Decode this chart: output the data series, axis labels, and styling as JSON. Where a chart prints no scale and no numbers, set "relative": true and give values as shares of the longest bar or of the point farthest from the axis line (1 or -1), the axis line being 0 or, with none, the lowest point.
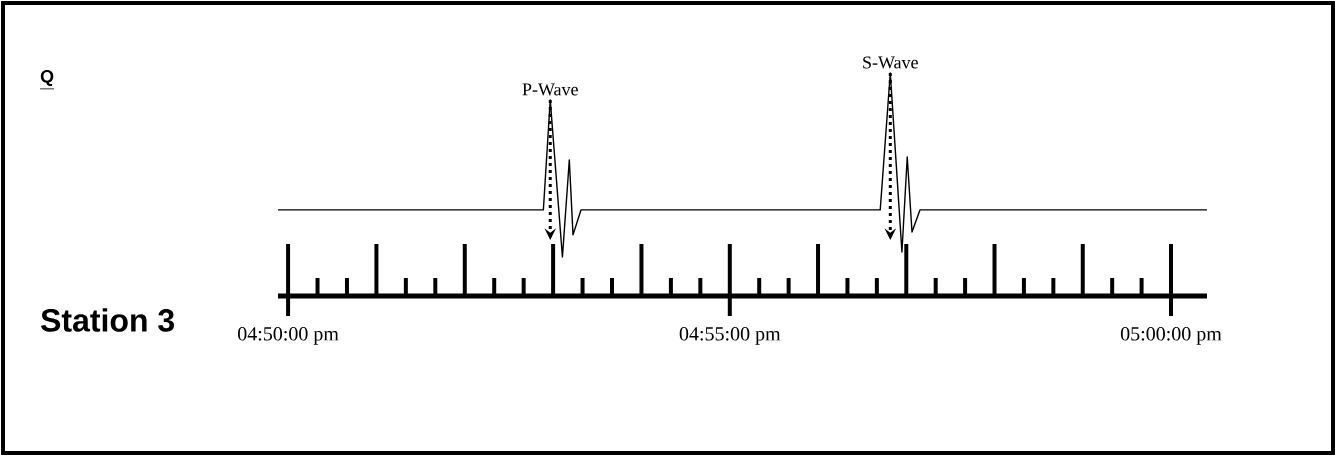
{
  "chart_data": {
    "type": "line",
    "title": "Q",
    "ylabel": "Station 3",
    "relative": true,
    "color": "#000000",
    "x": [
      16.8314,
      16.8815,
      16.8828,
      16.8851,
      16.8864,
      16.8871,
      16.8886,
      16.9451,
      16.947,
      16.9492,
      16.9502,
      16.9511,
      16.9526,
      17.0068
    ],
    "values": [
      0.386,
      0.386,
      0.879,
      0.175,
      0.61,
      0.274,
      0.386,
      0.386,
      1.0,
      0.197,
      0.623,
      0.287,
      0.386,
      0.386
    ],
    "xlim": [
      16.8314,
      17.0068
    ],
    "xticks": [
      {
        "value": 16.8333,
        "label": "04:50:00 pm"
      },
      {
        "value": 16.9167,
        "label": "04:55:00 pm"
      },
      {
        "value": 17.0,
        "label": "05:00:00 pm"
      }
    ],
    "annotations": [
      {
        "text": "P-Wave",
        "x": 16.8828,
        "y": 0.879
      },
      {
        "text": "S-Wave",
        "x": 16.947,
        "y": 1.0
      }
    ]
  }
}
